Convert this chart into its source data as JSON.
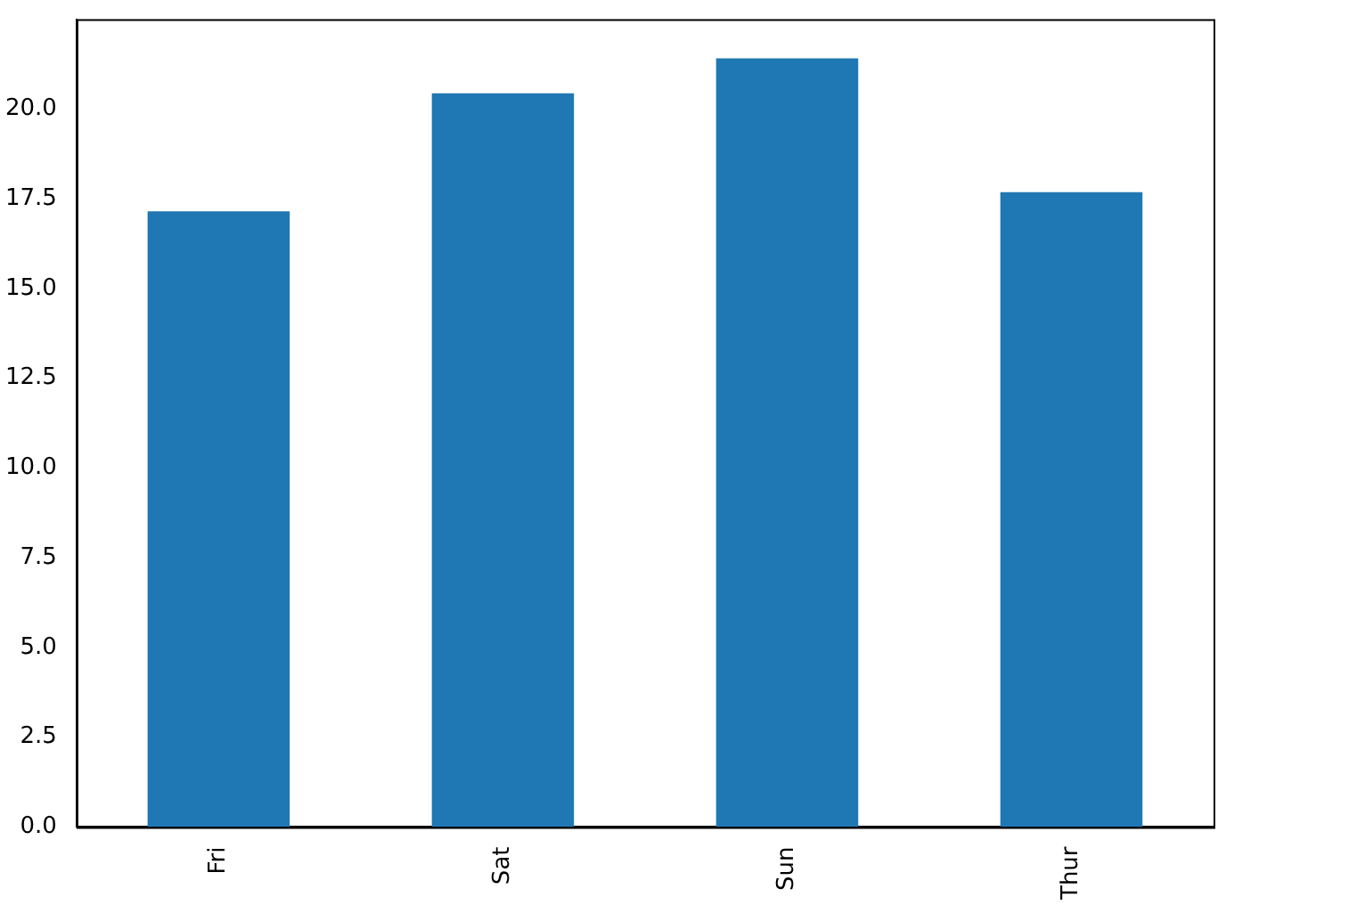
{
  "chart_data": {
    "type": "bar",
    "categories": [
      "Fri",
      "Sat",
      "Sun",
      "Thur"
    ],
    "values": [
      17.15,
      20.44,
      21.41,
      17.68
    ],
    "color": "#1f77b4",
    "ylim": [
      0,
      22.5
    ],
    "yticks": [
      {
        "value": 0,
        "label": "0.0"
      },
      {
        "value": 2.5,
        "label": "2.5"
      },
      {
        "value": 5,
        "label": "5.0"
      },
      {
        "value": 7.5,
        "label": "7.5"
      },
      {
        "value": 10,
        "label": "10.0"
      },
      {
        "value": 12.5,
        "label": "12.5"
      },
      {
        "value": 15,
        "label": "15.0"
      },
      {
        "value": 17.5,
        "label": "17.5"
      },
      {
        "value": 20,
        "label": "20.0"
      }
    ]
  }
}
